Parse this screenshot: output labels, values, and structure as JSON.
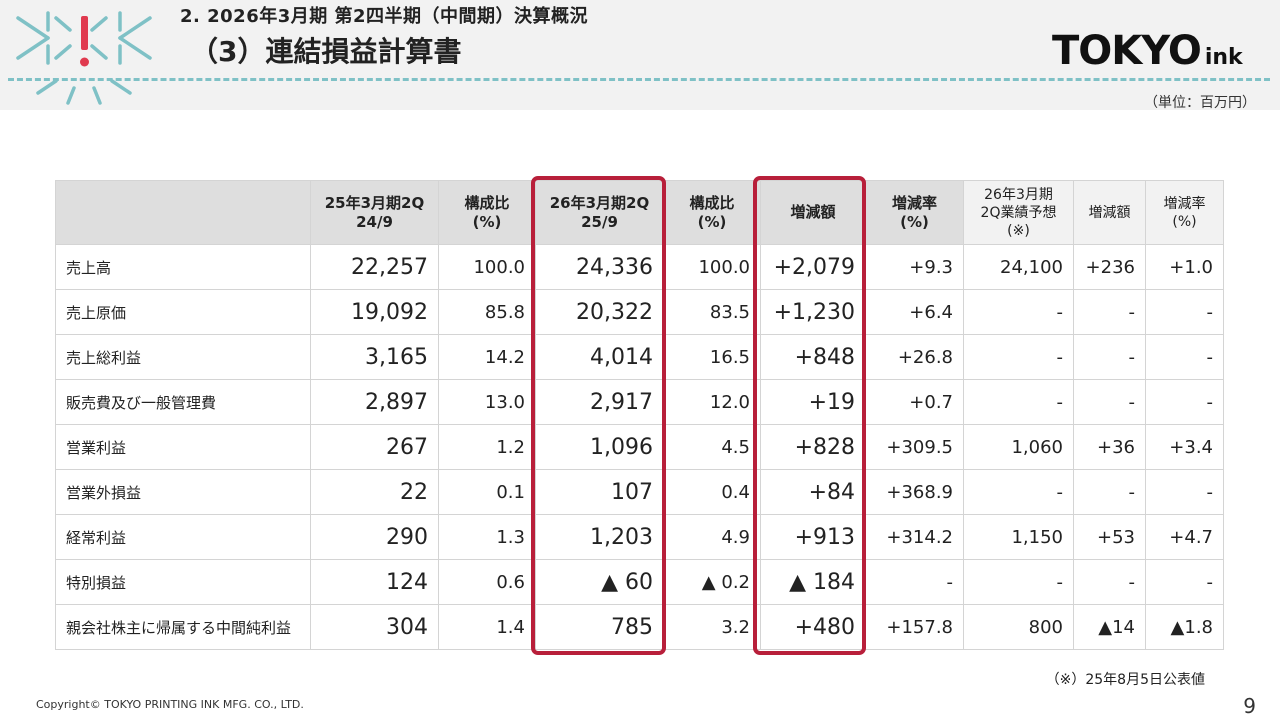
{
  "header": {
    "subtitle": "2. 2026年3月期 第2四半期（中間期）決算概況",
    "title": "（3）連結損益計算書",
    "brand_main": "TOKYO",
    "brand_sub": "ink",
    "unit": "（単位：百万円）",
    "accent_color": "#7fc1c6",
    "mark_color": "#e03a4f"
  },
  "table": {
    "headers": [
      "",
      "25年3月期2Q\n24/9",
      "構成比\n(%)",
      "26年3月期2Q\n25/9",
      "構成比\n(%)",
      "増減額",
      "増減率\n(%)",
      "26年3月期\n2Q業績予想\n(※)",
      "増減額",
      "増減率\n(%)"
    ],
    "rows": [
      [
        "売上高",
        "22,257",
        "100.0",
        "24,336",
        "100.0",
        "+2,079",
        "+9.3",
        "24,100",
        "+236",
        "+1.0"
      ],
      [
        "売上原価",
        "19,092",
        "85.8",
        "20,322",
        "83.5",
        "+1,230",
        "+6.4",
        "-",
        "-",
        "-"
      ],
      [
        "売上総利益",
        "3,165",
        "14.2",
        "4,014",
        "16.5",
        "+848",
        "+26.8",
        "-",
        "-",
        "-"
      ],
      [
        "販売費及び一般管理費",
        "2,897",
        "13.0",
        "2,917",
        "12.0",
        "+19",
        "+0.7",
        "-",
        "-",
        "-"
      ],
      [
        "営業利益",
        "267",
        "1.2",
        "1,096",
        "4.5",
        "+828",
        "+309.5",
        "1,060",
        "+36",
        "+3.4"
      ],
      [
        "営業外損益",
        "22",
        "0.1",
        "107",
        "0.4",
        "+84",
        "+368.9",
        "-",
        "-",
        "-"
      ],
      [
        "経常利益",
        "290",
        "1.3",
        "1,203",
        "4.9",
        "+913",
        "+314.2",
        "1,150",
        "+53",
        "+4.7"
      ],
      [
        "特別損益",
        "124",
        "0.6",
        "▲ 60",
        "▲ 0.2",
        "▲ 184",
        "-",
        "-",
        "-",
        "-"
      ],
      [
        "親会社株主に帰属する中間純利益",
        "304",
        "1.4",
        "785",
        "3.2",
        "+480",
        "+157.8",
        "800",
        "▲14",
        "▲1.8"
      ]
    ],
    "highlight_color": "#b81f3a"
  },
  "footer": {
    "note": "（※）25年8月5日公表値",
    "copyright": "Copyright© TOKYO PRINTING INK MFG. CO., LTD.",
    "page": "9"
  }
}
